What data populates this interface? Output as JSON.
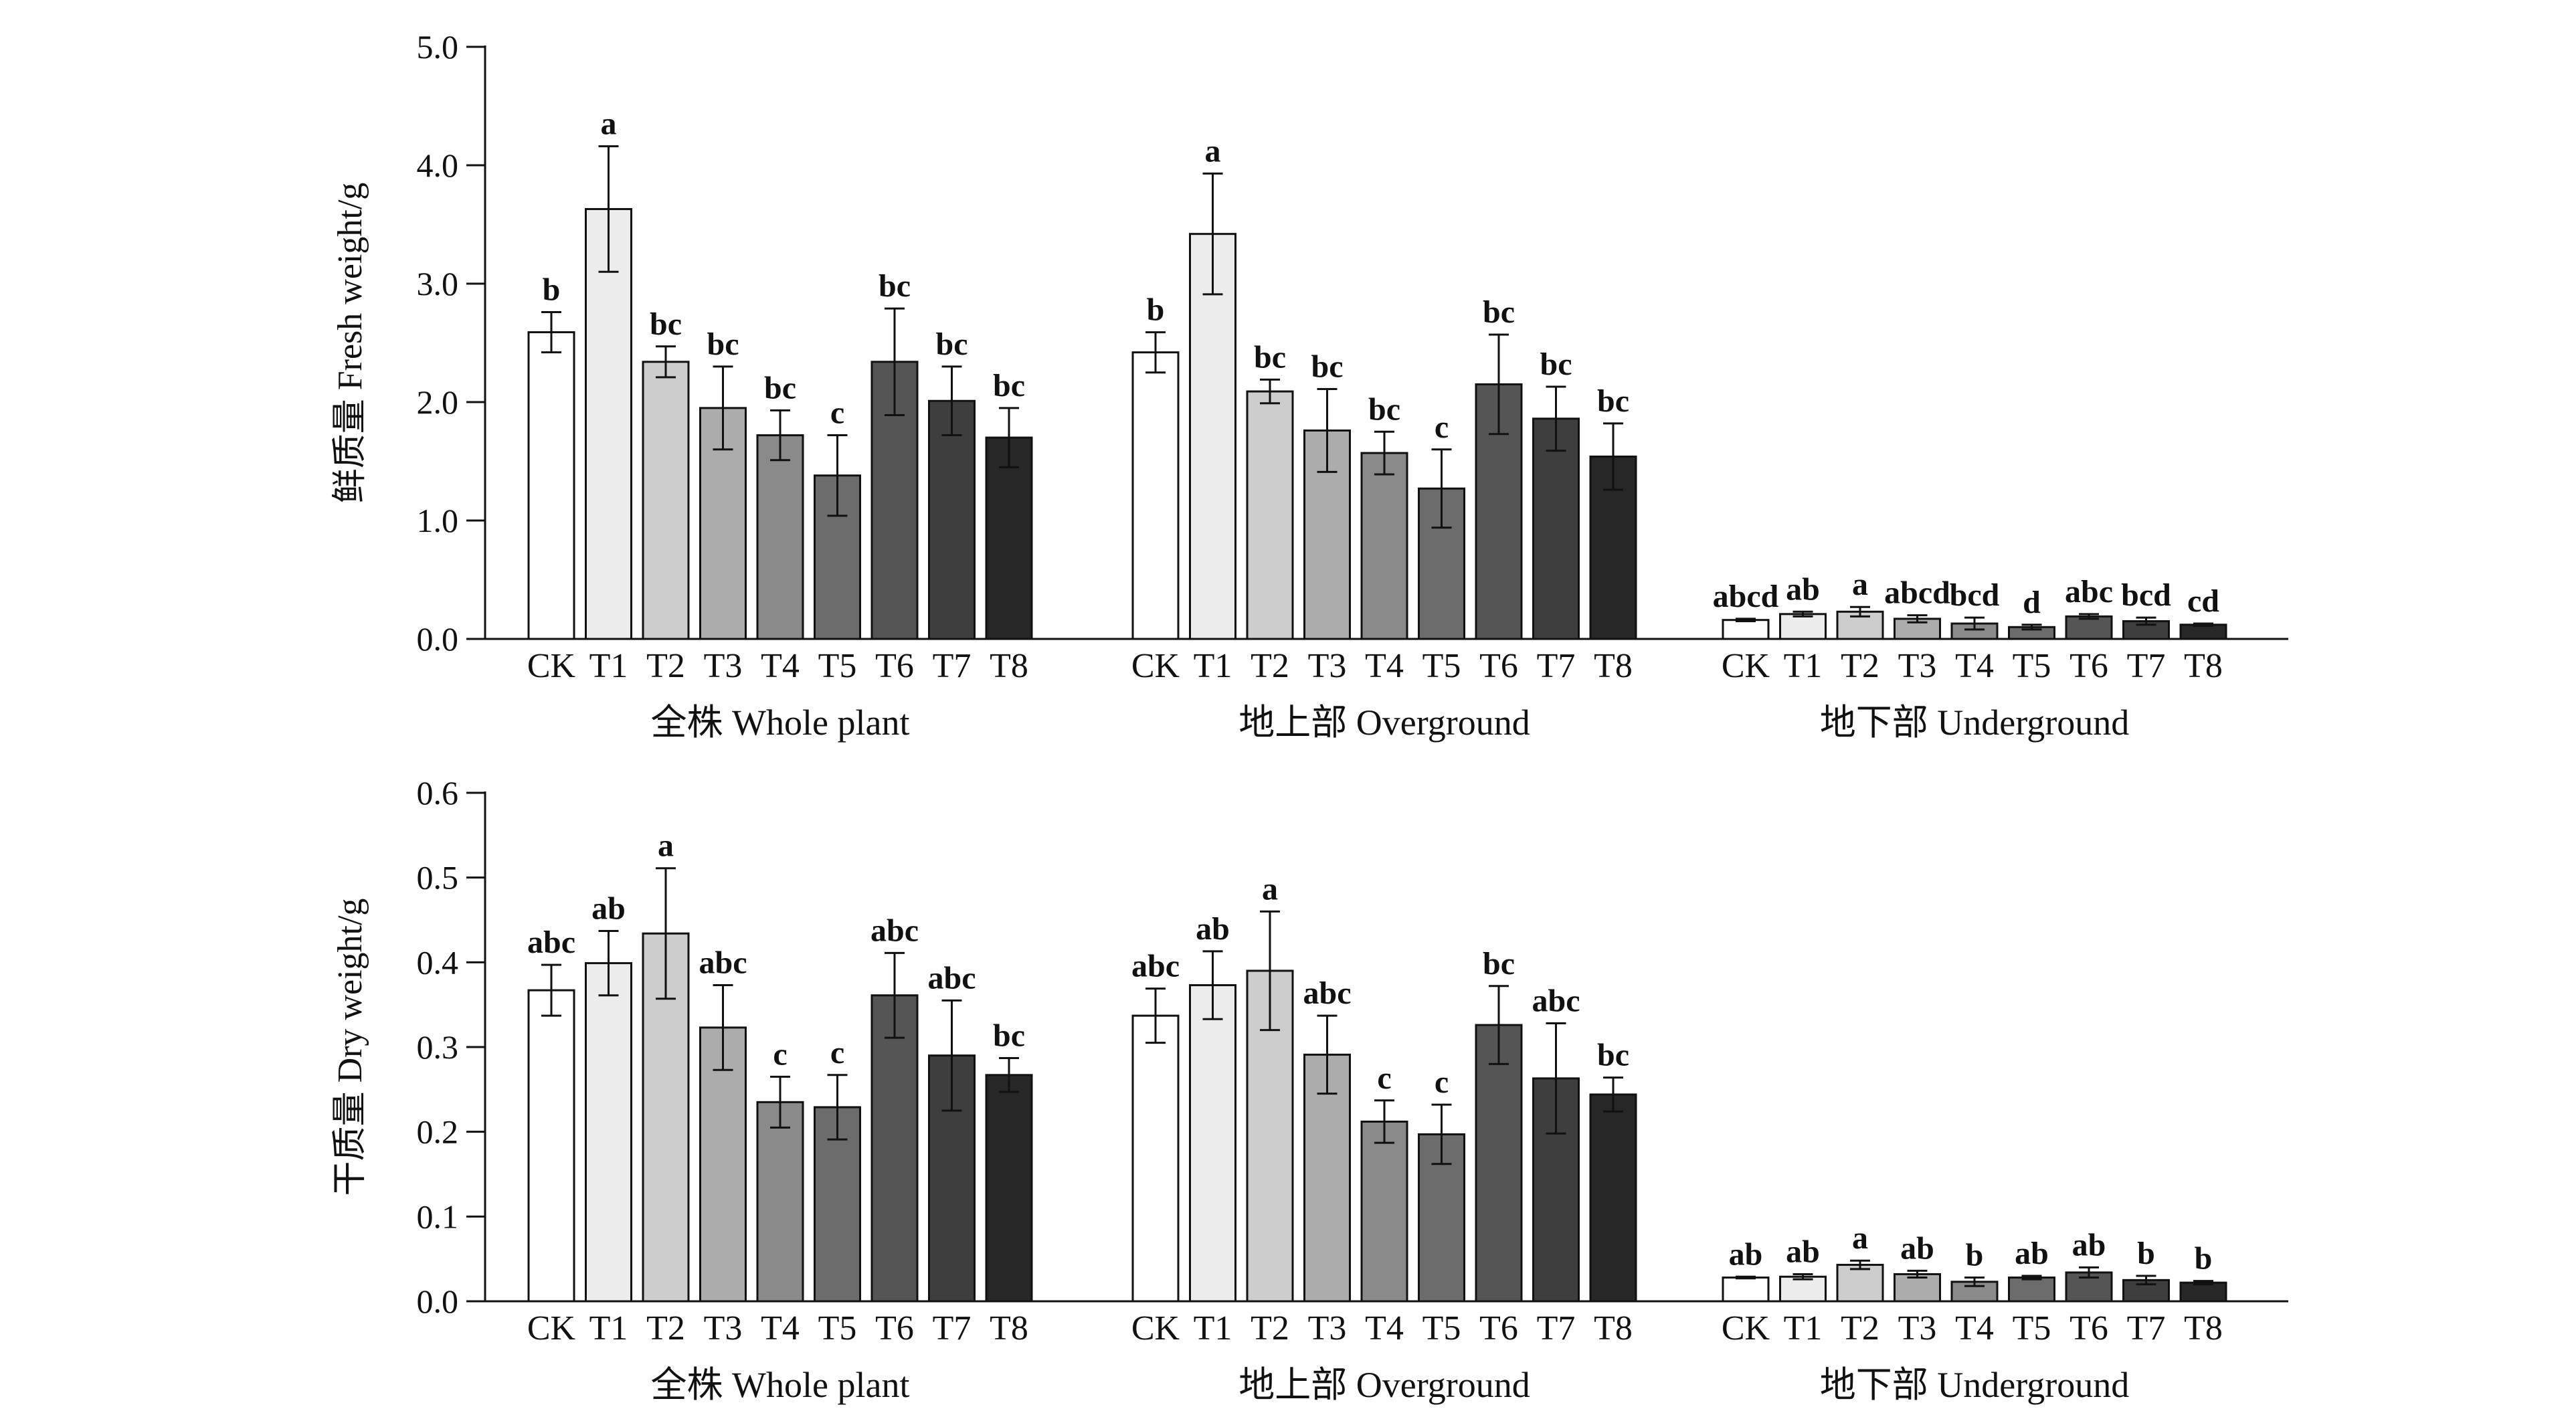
{
  "chart_data": [
    {
      "type": "bar",
      "ylabel": "鲜质量 Fresh weight/g",
      "ylim": [
        0,
        5.0
      ],
      "yticks": [
        "0.0",
        "1.0",
        "2.0",
        "3.0",
        "4.0",
        "5.0"
      ],
      "categories": [
        "CK",
        "T1",
        "T2",
        "T3",
        "T4",
        "T5",
        "T6",
        "T7",
        "T8"
      ],
      "colors": [
        "#ffffff",
        "#ececec",
        "#cdcdcd",
        "#acacac",
        "#8a8a8a",
        "#6c6c6c",
        "#555555",
        "#3e3e3e",
        "#272727"
      ],
      "groups": [
        {
          "name": "全株 Whole plant",
          "values": [
            2.59,
            3.63,
            2.34,
            1.95,
            1.72,
            1.38,
            2.34,
            2.01,
            1.7
          ],
          "errors": [
            0.17,
            0.53,
            0.13,
            0.35,
            0.21,
            0.34,
            0.45,
            0.29,
            0.25
          ],
          "labels": [
            "b",
            "a",
            "bc",
            "bc",
            "bc",
            "c",
            "bc",
            "bc",
            "bc"
          ]
        },
        {
          "name": "地上部 Overground",
          "values": [
            2.42,
            3.42,
            2.09,
            1.76,
            1.57,
            1.27,
            2.15,
            1.86,
            1.54
          ],
          "errors": [
            0.17,
            0.51,
            0.1,
            0.35,
            0.18,
            0.33,
            0.42,
            0.27,
            0.28
          ],
          "labels": [
            "b",
            "a",
            "bc",
            "bc",
            "bc",
            "c",
            "bc",
            "bc",
            "bc"
          ]
        },
        {
          "name": "地下部 Underground",
          "values": [
            0.16,
            0.21,
            0.23,
            0.17,
            0.13,
            0.1,
            0.19,
            0.15,
            0.12
          ],
          "errors": [
            0.01,
            0.02,
            0.04,
            0.03,
            0.05,
            0.02,
            0.02,
            0.03,
            0.01
          ],
          "labels": [
            "abcd",
            "ab",
            "a",
            "abcd",
            "bcd",
            "d",
            "abc",
            "bcd",
            "cd"
          ]
        }
      ]
    },
    {
      "type": "bar",
      "ylabel": "干质量 Dry weight/g",
      "ylim": [
        0,
        0.6
      ],
      "yticks": [
        "0.0",
        "0.1",
        "0.2",
        "0.3",
        "0.4",
        "0.5",
        "0.6"
      ],
      "categories": [
        "CK",
        "T1",
        "T2",
        "T3",
        "T4",
        "T5",
        "T6",
        "T7",
        "T8"
      ],
      "colors": [
        "#ffffff",
        "#ececec",
        "#cdcdcd",
        "#acacac",
        "#8a8a8a",
        "#6c6c6c",
        "#555555",
        "#3e3e3e",
        "#272727"
      ],
      "groups": [
        {
          "name": "全株 Whole plant",
          "values": [
            0.367,
            0.399,
            0.434,
            0.323,
            0.235,
            0.229,
            0.361,
            0.29,
            0.267
          ],
          "errors": [
            0.03,
            0.038,
            0.077,
            0.05,
            0.03,
            0.038,
            0.05,
            0.065,
            0.02
          ],
          "labels": [
            "abc",
            "ab",
            "a",
            "abc",
            "c",
            "c",
            "abc",
            "abc",
            "bc"
          ]
        },
        {
          "name": "地上部 Overground",
          "values": [
            0.337,
            0.373,
            0.39,
            0.291,
            0.212,
            0.197,
            0.326,
            0.263,
            0.244
          ],
          "errors": [
            0.032,
            0.04,
            0.07,
            0.046,
            0.025,
            0.035,
            0.046,
            0.065,
            0.02
          ],
          "labels": [
            "abc",
            "ab",
            "a",
            "abc",
            "c",
            "c",
            "bc",
            "abc",
            "bc"
          ]
        },
        {
          "name": "地下部 Underground",
          "values": [
            0.028,
            0.029,
            0.043,
            0.032,
            0.023,
            0.028,
            0.034,
            0.025,
            0.022
          ],
          "errors": [
            0.001,
            0.003,
            0.005,
            0.004,
            0.005,
            0.002,
            0.006,
            0.005,
            0.002
          ],
          "labels": [
            "ab",
            "ab",
            "a",
            "ab",
            "b",
            "ab",
            "ab",
            "b",
            "b"
          ]
        }
      ]
    }
  ]
}
